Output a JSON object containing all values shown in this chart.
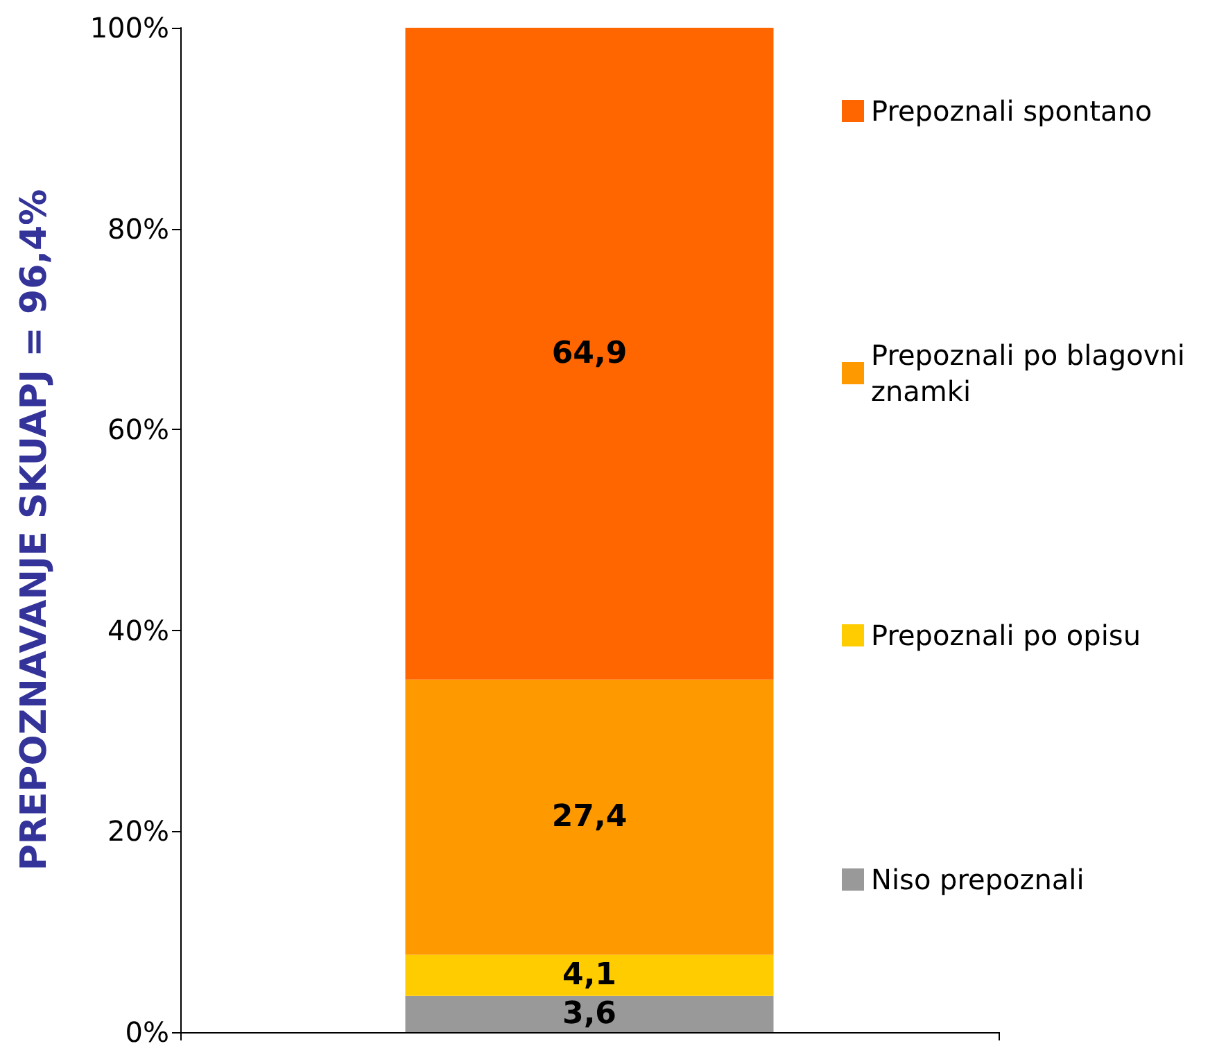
{
  "chart_data": {
    "type": "bar",
    "stacked": true,
    "ylabel": "PREPOZNAVANJE SKUAPJ = 96,4%",
    "categories": [
      null
    ],
    "ylim": [
      0,
      100
    ],
    "yticks": [
      {
        "value": 0,
        "label": "0%"
      },
      {
        "value": 20,
        "label": "20%"
      },
      {
        "value": 40,
        "label": "40%"
      },
      {
        "value": 60,
        "label": "60%"
      },
      {
        "value": 80,
        "label": "80%"
      },
      {
        "value": 100,
        "label": "100%"
      }
    ],
    "grid": false,
    "legend": "right",
    "series": [
      {
        "name": "Niso prepoznali",
        "color": "#999999",
        "values": [
          3.6
        ],
        "value_labels": [
          "3,6"
        ]
      },
      {
        "name": "Prepoznali po opisu",
        "color": "#ffcc00",
        "values": [
          4.1
        ],
        "value_labels": [
          "4,1"
        ]
      },
      {
        "name": "Prepoznali po blagovni znamki",
        "color": "#ff9900",
        "values": [
          27.4
        ],
        "value_labels": [
          "27,4"
        ]
      },
      {
        "name": "Prepoznali spontano",
        "color": "#ff6600",
        "values": [
          64.9
        ],
        "value_labels": [
          "64,9"
        ]
      }
    ]
  }
}
